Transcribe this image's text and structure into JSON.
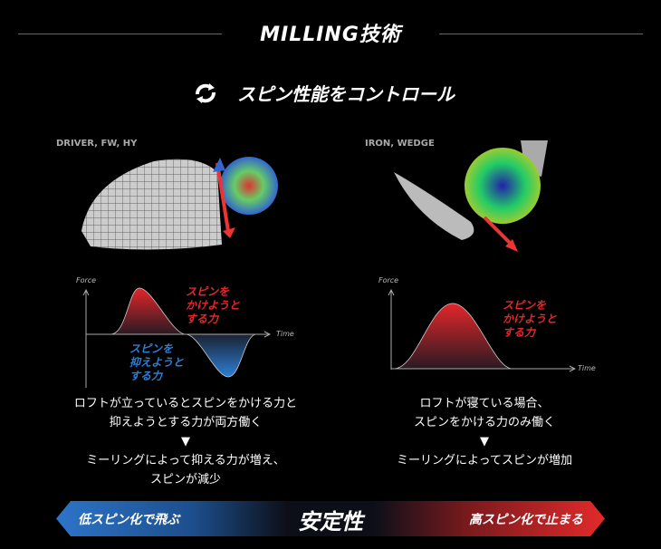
{
  "header": {
    "title": "MILLING技術",
    "subtitle": "スピン性能をコントロール",
    "subtitle_icon": "rotate-arrows-icon"
  },
  "left": {
    "label": "DRIVER, FW, HY",
    "chart": {
      "type": "area",
      "y_label": "Force",
      "x_label": "Time",
      "positive_label": "スピンを\nかけようと\nする力",
      "negative_label": "スピンを\n抑えようと\nする力"
    },
    "desc1": "ロフトが立っているとスピンをかける力と",
    "desc2": "抑えようとする力が両方働く",
    "arrow": "▼",
    "result1": "ミーリングによって抑える力が増え、",
    "result2": "スピンが減少"
  },
  "right": {
    "label": "IRON, WEDGE",
    "chart": {
      "type": "area",
      "y_label": "Force",
      "x_label": "Time",
      "positive_label": "スピンを\nかけようと\nする力"
    },
    "desc1": "ロフトが寝ている場合、",
    "desc2": "スピンをかける力のみ働く",
    "arrow": "▼",
    "result1": "ミーリングによってスピンが増加"
  },
  "bottom": {
    "left_label": "低スピン化で飛ぶ",
    "center_label": "安定性",
    "right_label": "高スピン化で止まる",
    "left_color": "#2d74c9",
    "right_color": "#e32a2a"
  }
}
